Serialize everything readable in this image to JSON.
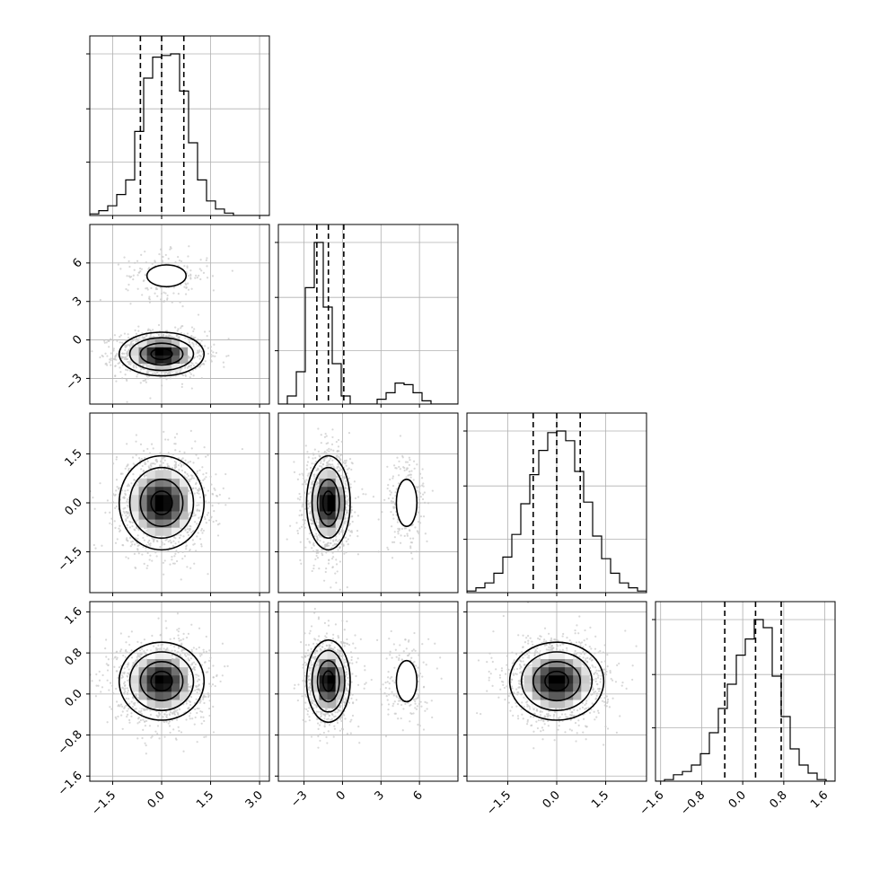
{
  "chart_data": {
    "type": "corner",
    "n_params": 4,
    "params": [
      {
        "range": [
          -2.2,
          3.3
        ],
        "ticks": [
          -1.5,
          0.0,
          1.5,
          3.0
        ],
        "tick_labels": [
          "−1.5",
          "0.0",
          "1.5",
          "3.0"
        ]
      },
      {
        "range": [
          -5.0,
          9.0
        ],
        "ticks": [
          -3,
          0,
          3,
          6
        ],
        "tick_labels": [
          "−3",
          "0",
          "3",
          "6"
        ]
      },
      {
        "range": [
          -2.75,
          2.75
        ],
        "ticks": [
          -1.5,
          0.0,
          1.5
        ],
        "tick_labels": [
          "−1.5",
          "0.0",
          "1.5"
        ]
      },
      {
        "range": [
          -1.7,
          1.8
        ],
        "ticks": [
          -1.6,
          -0.8,
          0.0,
          0.8,
          1.6
        ],
        "tick_labels": [
          "−1.6",
          "−0.8",
          "0.0",
          "0.8",
          "1.6"
        ]
      }
    ],
    "histograms": [
      {
        "param": 0,
        "quantiles": [
          -0.65,
          0.0,
          0.68
        ],
        "peak": 1.0,
        "bin_edges": [
          -2.2,
          -1.925,
          -1.65,
          -1.375,
          -1.1,
          -0.825,
          -0.55,
          -0.275,
          0.0,
          0.275,
          0.55,
          0.825,
          1.1,
          1.375,
          1.65,
          1.925,
          2.2,
          2.475,
          2.75,
          3.025,
          3.3
        ],
        "counts": [
          0.01,
          0.03,
          0.06,
          0.13,
          0.22,
          0.52,
          0.85,
          0.98,
          0.99,
          1.0,
          0.77,
          0.45,
          0.22,
          0.09,
          0.04,
          0.015,
          0.0,
          0.0,
          0.0,
          0.0
        ]
      },
      {
        "param": 1,
        "quantiles": [
          -2.0,
          -1.1,
          0.1
        ],
        "peak": 1.0,
        "bin_edges": [
          -5.0,
          -4.3,
          -3.6,
          -2.9,
          -2.2,
          -1.5,
          -0.8,
          -0.1,
          0.6,
          1.3,
          2.0,
          2.7,
          3.4,
          4.1,
          4.8,
          5.5,
          6.2,
          6.9,
          7.6,
          8.3,
          9.0
        ],
        "counts": [
          0.0,
          0.05,
          0.2,
          0.72,
          1.0,
          0.6,
          0.25,
          0.05,
          0.0,
          0.0,
          0.0,
          0.03,
          0.07,
          0.13,
          0.12,
          0.07,
          0.02,
          0.0,
          0.0,
          0.0
        ]
      },
      {
        "param": 2,
        "quantiles": [
          -0.72,
          0.0,
          0.72
        ],
        "peak": 1.0,
        "bin_edges": [
          -2.75,
          -2.475,
          -2.2,
          -1.925,
          -1.65,
          -1.375,
          -1.1,
          -0.825,
          -0.55,
          -0.275,
          0.0,
          0.275,
          0.55,
          0.825,
          1.1,
          1.375,
          1.65,
          1.925,
          2.2,
          2.475,
          2.75
        ],
        "counts": [
          0.01,
          0.03,
          0.06,
          0.12,
          0.22,
          0.36,
          0.55,
          0.73,
          0.88,
          0.99,
          1.0,
          0.94,
          0.75,
          0.56,
          0.35,
          0.21,
          0.12,
          0.06,
          0.03,
          0.01
        ]
      },
      {
        "param": 3,
        "quantiles": [
          -0.35,
          0.25,
          0.75
        ],
        "peak": 1.0,
        "bin_edges": [
          -1.7,
          -1.525,
          -1.35,
          -1.175,
          -1.0,
          -0.825,
          -0.65,
          -0.475,
          -0.3,
          -0.125,
          0.05,
          0.225,
          0.4,
          0.575,
          0.75,
          0.925,
          1.1,
          1.275,
          1.45,
          1.625,
          1.8
        ],
        "counts": [
          0.0,
          0.01,
          0.04,
          0.06,
          0.1,
          0.17,
          0.3,
          0.45,
          0.6,
          0.78,
          0.88,
          1.0,
          0.95,
          0.65,
          0.4,
          0.2,
          0.1,
          0.05,
          0.01,
          0.0
        ]
      }
    ],
    "contour_levels": 3,
    "density_panels": [
      {
        "x_param": 0,
        "y_param": 1,
        "modes": [
          {
            "x": 0.0,
            "y": -1.1,
            "sx": 0.65,
            "sy": 0.85,
            "weight": 0.85
          },
          {
            "x": 0.15,
            "y": 5.0,
            "sx": 0.6,
            "sy": 0.85,
            "weight": 0.15
          }
        ]
      },
      {
        "x_param": 0,
        "y_param": 2,
        "modes": [
          {
            "x": 0.0,
            "y": 0.0,
            "sx": 0.65,
            "sy": 0.72,
            "weight": 1.0
          }
        ]
      },
      {
        "x_param": 1,
        "y_param": 2,
        "modes": [
          {
            "x": -1.1,
            "y": 0.0,
            "sx": 0.85,
            "sy": 0.72,
            "weight": 0.85
          },
          {
            "x": 5.0,
            "y": 0.0,
            "sx": 0.8,
            "sy": 0.72,
            "weight": 0.15
          }
        ]
      },
      {
        "x_param": 0,
        "y_param": 3,
        "modes": [
          {
            "x": 0.0,
            "y": 0.25,
            "sx": 0.65,
            "sy": 0.38,
            "weight": 1.0
          }
        ]
      },
      {
        "x_param": 1,
        "y_param": 3,
        "modes": [
          {
            "x": -1.1,
            "y": 0.25,
            "sx": 0.85,
            "sy": 0.4,
            "weight": 0.85
          },
          {
            "x": 5.0,
            "y": 0.25,
            "sx": 0.8,
            "sy": 0.4,
            "weight": 0.15
          }
        ]
      },
      {
        "x_param": 2,
        "y_param": 3,
        "modes": [
          {
            "x": 0.0,
            "y": 0.25,
            "sx": 0.72,
            "sy": 0.38,
            "weight": 1.0
          }
        ]
      }
    ],
    "grid": true,
    "colors": {
      "line": "#000000",
      "grid": "#b0b0b0",
      "points": "#c8c8c8",
      "fill_dark": "#000000"
    }
  }
}
